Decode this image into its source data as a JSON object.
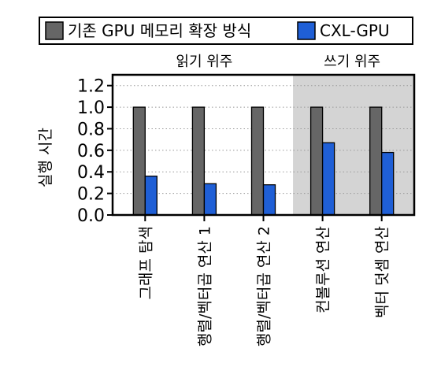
{
  "chart_data": {
    "type": "bar",
    "ylabel": "실행 시간",
    "ylim": [
      0,
      1.3
    ],
    "yticks": [
      "0.0",
      "0.2",
      "0.4",
      "0.6",
      "0.8",
      "1.0",
      "1.2"
    ],
    "grid": "horizontal dotted",
    "legend_position": "top",
    "categories": [
      "그래프 탐색",
      "행렬/벡터곱 연산 1",
      "행렬/벡터곱 연산 2",
      "컨볼루션 연산",
      "벡터 덧셈 연산"
    ],
    "groups": [
      {
        "label": "읽기 위주",
        "categories": [
          0,
          1,
          2
        ],
        "shaded": false
      },
      {
        "label": "쓰기 위주",
        "categories": [
          3,
          4
        ],
        "shaded": true
      }
    ],
    "series": [
      {
        "name": "기존 GPU 메모리 확장 방식",
        "color": "#666666",
        "values": [
          1.0,
          1.0,
          1.0,
          1.0,
          1.0
        ]
      },
      {
        "name": "CXL-GPU",
        "color": "#1f5fd6",
        "values": [
          0.36,
          0.29,
          0.28,
          0.67,
          0.58
        ]
      }
    ]
  }
}
